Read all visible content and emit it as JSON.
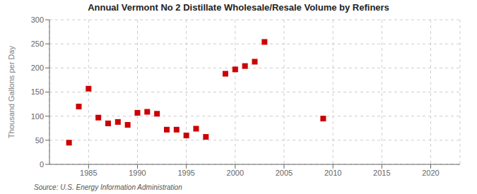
{
  "chart_data": {
    "type": "scatter",
    "title": "Annual Vermont No 2 Distillate Wholesale/Resale Volume by Refiners",
    "y_label": "Thousand Gallons per Day",
    "annotations": [
      "Source: U.S. Energy Information Administration"
    ],
    "color": "#cc0000",
    "marker": "square",
    "xlim": [
      1981,
      2023
    ],
    "ylim": [
      0,
      300
    ],
    "xticks": [
      1985,
      1990,
      1995,
      2000,
      2005,
      2010,
      2015,
      2020
    ],
    "yticks": [
      0,
      50,
      100,
      150,
      200,
      250,
      300
    ],
    "grid": true,
    "x": [
      1983,
      1984,
      1985,
      1986,
      1987,
      1988,
      1989,
      1990,
      1991,
      1992,
      1993,
      1994,
      1995,
      1996,
      1997,
      1999,
      2000,
      2001,
      2002,
      2003,
      2009
    ],
    "values": [
      45,
      120,
      157,
      97,
      85,
      88,
      82,
      107,
      109,
      105,
      72,
      72,
      60,
      74,
      57,
      188,
      197,
      204,
      213,
      254,
      95
    ]
  }
}
